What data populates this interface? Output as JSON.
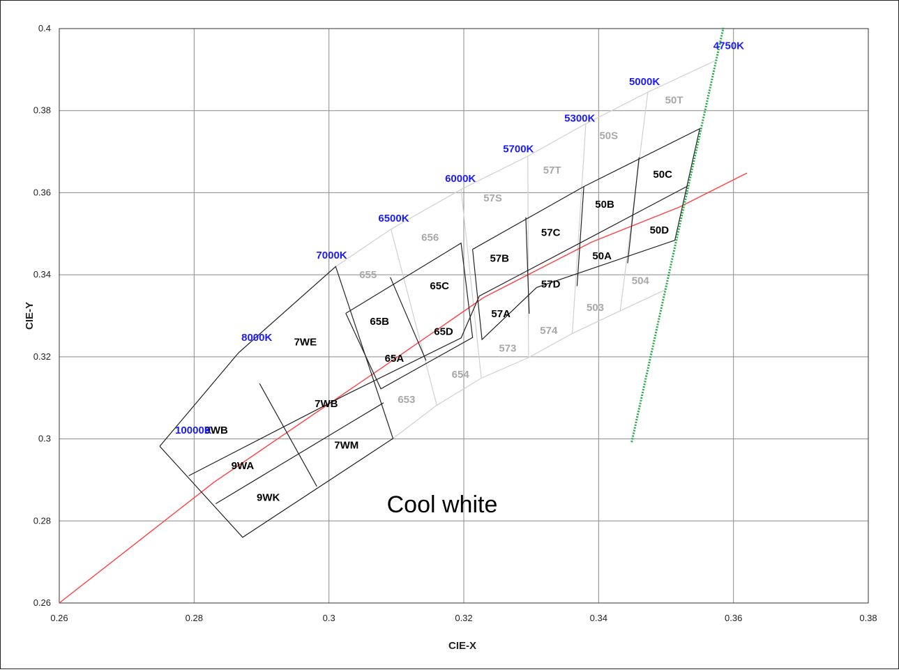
{
  "chart_data": {
    "type": "scatter",
    "xlabel": "CIE-X",
    "ylabel": "CIE-Y",
    "xlim": [
      0.26,
      0.38
    ],
    "ylim": [
      0.26,
      0.4
    ],
    "x_ticks": [
      "0.26",
      "0.28",
      "0.3",
      "0.32",
      "0.34",
      "0.36",
      "0.38"
    ],
    "y_ticks": [
      "0.26",
      "0.28",
      "0.3",
      "0.32",
      "0.34",
      "0.36",
      "0.38",
      "0.4"
    ],
    "grid": true,
    "annotation": "Cool white",
    "colors": {
      "planckian_locus": "#ff4040",
      "boundary": "#22aa44",
      "cct_label": "#1a1aff",
      "bin_dark": "#000000",
      "bin_grey": "#a8a8a8",
      "grey_line": "#d0d0d0",
      "grid": "#8a8a8a"
    },
    "planckian_locus": [
      [
        0.26,
        0.26
      ],
      [
        0.283,
        0.2895
      ],
      [
        0.308,
        0.3175
      ],
      [
        0.323,
        0.3345
      ],
      [
        0.339,
        0.348
      ],
      [
        0.352,
        0.3565
      ],
      [
        0.362,
        0.3648
      ]
    ],
    "cct_boundary_line": [
      [
        0.3449,
        0.2992
      ],
      [
        0.3585,
        0.4002
      ]
    ],
    "grey_lines": [
      [
        [
          0.2866,
          0.321
        ],
        [
          0.301,
          0.342
        ],
        [
          0.3092,
          0.3511
        ],
        [
          0.3196,
          0.3608
        ],
        [
          0.3295,
          0.3689
        ],
        [
          0.3381,
          0.3768
        ],
        [
          0.3473,
          0.3845
        ],
        [
          0.3572,
          0.3921
        ]
      ],
      [
        [
          0.3095,
          0.3001
        ],
        [
          0.316,
          0.3082
        ],
        [
          0.3226,
          0.3148
        ],
        [
          0.3296,
          0.3198
        ],
        [
          0.3361,
          0.3257
        ],
        [
          0.3432,
          0.3312
        ],
        [
          0.3501,
          0.3365
        ]
      ],
      [
        [
          0.3092,
          0.3511
        ],
        [
          0.316,
          0.3082
        ]
      ],
      [
        [
          0.3196,
          0.3608
        ],
        [
          0.3226,
          0.3148
        ]
      ],
      [
        [
          0.3295,
          0.3689
        ],
        [
          0.3296,
          0.3198
        ]
      ],
      [
        [
          0.3381,
          0.3768
        ],
        [
          0.3361,
          0.3257
        ]
      ],
      [
        [
          0.3473,
          0.3845
        ],
        [
          0.3432,
          0.3312
        ]
      ]
    ],
    "dark_lines": [
      [
        [
          0.2749,
          0.2982
        ],
        [
          0.2866,
          0.321
        ],
        [
          0.301,
          0.342
        ],
        [
          0.3095,
          0.3001
        ],
        [
          0.2872,
          0.276
        ],
        [
          0.2749,
          0.2982
        ]
      ],
      [
        [
          0.3025,
          0.3306
        ],
        [
          0.3196,
          0.3477
        ],
        [
          0.3213,
          0.3247
        ],
        [
          0.3077,
          0.3122
        ],
        [
          0.3025,
          0.3306
        ]
      ],
      [
        [
          0.3213,
          0.3462
        ],
        [
          0.3378,
          0.3615
        ],
        [
          0.355,
          0.3756
        ],
        [
          0.3513,
          0.3484
        ],
        [
          0.3308,
          0.3369
        ],
        [
          0.3227,
          0.3242
        ],
        [
          0.3213,
          0.3462
        ]
      ],
      [
        [
          0.2792,
          0.291
        ],
        [
          0.3022,
          0.3105
        ],
        [
          0.3196,
          0.3246
        ],
        [
          0.3223,
          0.3348
        ],
        [
          0.338,
          0.3484
        ],
        [
          0.3533,
          0.3617
        ]
      ],
      [
        [
          0.2832,
          0.2842
        ],
        [
          0.3081,
          0.3088
        ]
      ],
      [
        [
          0.2897,
          0.3135
        ],
        [
          0.2982,
          0.2884
        ]
      ],
      [
        [
          0.3091,
          0.3394
        ],
        [
          0.3144,
          0.3191
        ]
      ],
      [
        [
          0.3292,
          0.354
        ],
        [
          0.3297,
          0.3305
        ]
      ],
      [
        [
          0.3378,
          0.3615
        ],
        [
          0.3368,
          0.3372
        ]
      ],
      [
        [
          0.346,
          0.3686
        ],
        [
          0.3443,
          0.3428
        ]
      ]
    ],
    "cct_labels": [
      {
        "text": "10000K",
        "x": 0.2799,
        "y": 0.3021
      },
      {
        "text": "8000K",
        "x": 0.2893,
        "y": 0.3247
      },
      {
        "text": "7000K",
        "x": 0.3004,
        "y": 0.3448
      },
      {
        "text": "6500K",
        "x": 0.3096,
        "y": 0.3538
      },
      {
        "text": "6000K",
        "x": 0.3195,
        "y": 0.3635
      },
      {
        "text": "5700K",
        "x": 0.3281,
        "y": 0.3707
      },
      {
        "text": "5300K",
        "x": 0.3372,
        "y": 0.3782
      },
      {
        "text": "5000K",
        "x": 0.3468,
        "y": 0.3871
      },
      {
        "text": "4750K",
        "x": 0.3593,
        "y": 0.3958
      }
    ],
    "bins": [
      {
        "text": "9WB",
        "x": 0.2833,
        "y": 0.3021,
        "tone": "dark"
      },
      {
        "text": "9WA",
        "x": 0.2872,
        "y": 0.2935,
        "tone": "dark"
      },
      {
        "text": "9WK",
        "x": 0.291,
        "y": 0.2857,
        "tone": "dark"
      },
      {
        "text": "7WE",
        "x": 0.2965,
        "y": 0.3236,
        "tone": "dark"
      },
      {
        "text": "7WB",
        "x": 0.2996,
        "y": 0.3086,
        "tone": "dark"
      },
      {
        "text": "7WM",
        "x": 0.3026,
        "y": 0.2985,
        "tone": "dark"
      },
      {
        "text": "65B",
        "x": 0.3075,
        "y": 0.3286,
        "tone": "dark"
      },
      {
        "text": "65A",
        "x": 0.3097,
        "y": 0.3196,
        "tone": "dark"
      },
      {
        "text": "65C",
        "x": 0.3164,
        "y": 0.3373,
        "tone": "dark"
      },
      {
        "text": "65D",
        "x": 0.317,
        "y": 0.3262,
        "tone": "dark"
      },
      {
        "text": "57B",
        "x": 0.3253,
        "y": 0.344,
        "tone": "dark"
      },
      {
        "text": "57A",
        "x": 0.3255,
        "y": 0.3305,
        "tone": "dark"
      },
      {
        "text": "57C",
        "x": 0.3329,
        "y": 0.3503,
        "tone": "dark"
      },
      {
        "text": "57D",
        "x": 0.3329,
        "y": 0.3377,
        "tone": "dark"
      },
      {
        "text": "50B",
        "x": 0.3409,
        "y": 0.3572,
        "tone": "dark"
      },
      {
        "text": "50A",
        "x": 0.3405,
        "y": 0.3446,
        "tone": "dark"
      },
      {
        "text": "50C",
        "x": 0.3495,
        "y": 0.3645,
        "tone": "dark"
      },
      {
        "text": "50D",
        "x": 0.349,
        "y": 0.3509,
        "tone": "dark"
      },
      {
        "text": "655",
        "x": 0.3058,
        "y": 0.34,
        "tone": "grey"
      },
      {
        "text": "656",
        "x": 0.315,
        "y": 0.3491,
        "tone": "grey"
      },
      {
        "text": "57S",
        "x": 0.3243,
        "y": 0.3587,
        "tone": "grey"
      },
      {
        "text": "57T",
        "x": 0.3331,
        "y": 0.3655,
        "tone": "grey"
      },
      {
        "text": "50S",
        "x": 0.3415,
        "y": 0.3739,
        "tone": "grey"
      },
      {
        "text": "50T",
        "x": 0.3512,
        "y": 0.3826,
        "tone": "grey"
      },
      {
        "text": "653",
        "x": 0.3115,
        "y": 0.3096,
        "tone": "grey"
      },
      {
        "text": "654",
        "x": 0.3195,
        "y": 0.3157,
        "tone": "grey"
      },
      {
        "text": "573",
        "x": 0.3265,
        "y": 0.3221,
        "tone": "grey"
      },
      {
        "text": "574",
        "x": 0.3326,
        "y": 0.3264,
        "tone": "grey"
      },
      {
        "text": "503",
        "x": 0.3395,
        "y": 0.332,
        "tone": "grey"
      },
      {
        "text": "504",
        "x": 0.3462,
        "y": 0.3386,
        "tone": "grey"
      }
    ]
  }
}
